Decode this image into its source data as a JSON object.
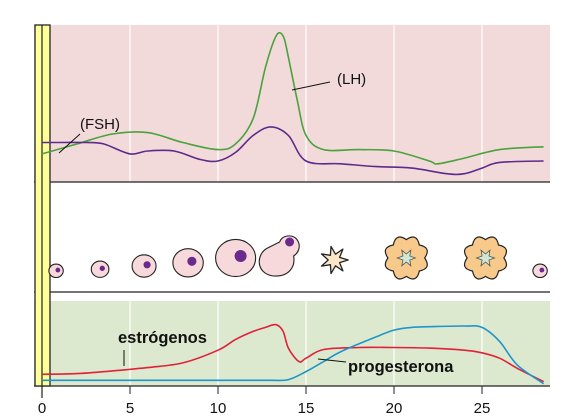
{
  "panels": {
    "hormones": {
      "background": "#f2dada",
      "grid": true
    },
    "ovary": {
      "background": "#ffffff"
    },
    "ovarian_hormones": {
      "background": "#dce9cf",
      "grid": true
    }
  },
  "labels": {
    "lh": "(LH)",
    "fsh": "(FSH)",
    "estrogens": "estrógenos",
    "progesterone": "progesterona"
  },
  "x_axis": {
    "ticks": [
      "0",
      "5",
      "10",
      "15",
      "20",
      "25"
    ],
    "ticks_values": [
      0,
      5,
      10,
      15,
      20,
      25
    ],
    "range": [
      0,
      29
    ]
  },
  "colors": {
    "lh": "#4aa23c",
    "fsh": "#5e2a8c",
    "estrogens": "#e0213a",
    "progesterone": "#1f95c9",
    "highlight": "#ffff99",
    "follicle_fill": "#f7d9dc",
    "follicle_nucleus": "#6a2a8c",
    "corpus_luteum": "#f7c98a"
  },
  "chart_data": [
    {
      "type": "line",
      "panel": "pituitary",
      "x_range": [
        0,
        29
      ],
      "series": [
        {
          "name": "(LH)",
          "x": [
            0,
            2,
            4,
            6,
            8,
            10,
            11,
            12,
            12.7,
            13.3,
            13.7,
            14,
            14.5,
            15,
            16,
            18,
            20,
            22,
            22.5,
            24,
            26,
            28.5
          ],
          "y": [
            0.17,
            0.24,
            0.31,
            0.32,
            0.25,
            0.2,
            0.24,
            0.42,
            0.78,
            1.0,
            1.0,
            0.85,
            0.55,
            0.3,
            0.2,
            0.2,
            0.19,
            0.12,
            0.1,
            0.14,
            0.2,
            0.22
          ]
        },
        {
          "name": "(FSH)",
          "x": [
            0,
            1,
            2.5,
            3.5,
            5,
            6,
            7.5,
            9,
            10,
            11,
            12,
            13,
            14,
            15,
            17,
            19,
            21,
            23,
            24,
            25,
            26,
            28.5
          ],
          "y": [
            0.25,
            0.25,
            0.25,
            0.24,
            0.17,
            0.19,
            0.19,
            0.13,
            0.12,
            0.18,
            0.3,
            0.36,
            0.3,
            0.12,
            0.1,
            0.08,
            0.07,
            0.03,
            0.03,
            0.07,
            0.11,
            0.12
          ]
        }
      ]
    },
    {
      "type": "line",
      "panel": "ovarian_hormones",
      "x_range": [
        0,
        29
      ],
      "series": [
        {
          "name": "estrógenos",
          "x": [
            0,
            2,
            4,
            6,
            8,
            10,
            11,
            12,
            12.7,
            13.3,
            13.7,
            14,
            14.6,
            15,
            16,
            18,
            20,
            22,
            24,
            25,
            26,
            27,
            28.5
          ],
          "y": [
            0.16,
            0.17,
            0.21,
            0.26,
            0.33,
            0.52,
            0.68,
            0.8,
            0.86,
            0.9,
            0.8,
            0.55,
            0.35,
            0.4,
            0.53,
            0.56,
            0.56,
            0.55,
            0.52,
            0.48,
            0.4,
            0.25,
            0.05
          ]
        },
        {
          "name": "progesterona",
          "x": [
            0,
            4,
            8,
            11,
            13,
            14,
            15,
            16,
            17,
            19,
            20,
            21,
            22,
            24,
            25,
            26,
            27,
            28.5
          ],
          "y": [
            0.07,
            0.07,
            0.07,
            0.07,
            0.07,
            0.08,
            0.2,
            0.35,
            0.5,
            0.72,
            0.82,
            0.86,
            0.87,
            0.88,
            0.86,
            0.65,
            0.3,
            0.02
          ]
        }
      ]
    }
  ],
  "follicles": [
    {
      "day": 0.8,
      "type": "follicle",
      "size": 0.45
    },
    {
      "day": 3.3,
      "type": "follicle",
      "size": 0.55
    },
    {
      "day": 5.8,
      "type": "follicle",
      "size": 0.75
    },
    {
      "day": 8.3,
      "type": "follicle",
      "size": 0.95
    },
    {
      "day": 11.0,
      "type": "follicle",
      "size": 1.25
    },
    {
      "day": 13.5,
      "type": "ovulating",
      "size": 1.3
    },
    {
      "day": 16.6,
      "type": "ruptured",
      "size": 1.0
    },
    {
      "day": 20.7,
      "type": "corpus-luteum",
      "size": 1.35
    },
    {
      "day": 25.2,
      "type": "corpus-luteum",
      "size": 1.35
    },
    {
      "day": 28.3,
      "type": "follicle",
      "size": 0.45
    }
  ]
}
